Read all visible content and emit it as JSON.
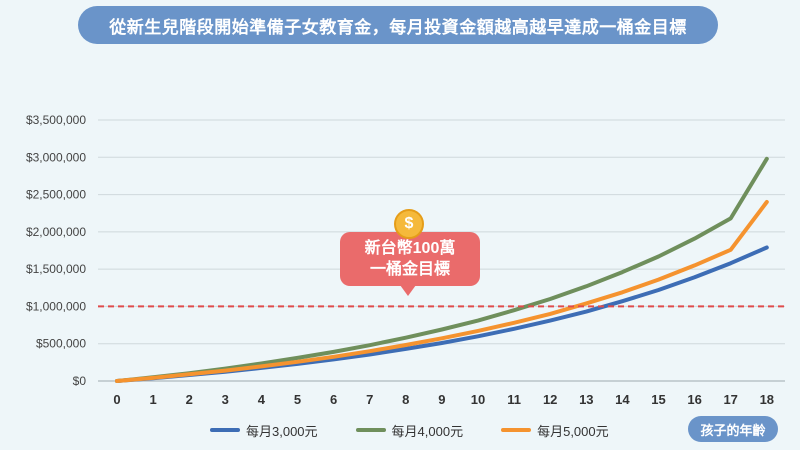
{
  "chart_data": {
    "type": "line",
    "title": "從新生兒階段開始準備子女教育金，每月投資金額越高越早達成一桶金目標",
    "xlabel": "孩子的年齡",
    "ylabel": "",
    "x": [
      0,
      1,
      2,
      3,
      4,
      5,
      6,
      7,
      8,
      9,
      10,
      11,
      12,
      13,
      14,
      15,
      16,
      17,
      18
    ],
    "y_ticks": [
      "$0",
      "$500,000",
      "$1,000,000",
      "$1,500,000",
      "$2,000,000",
      "$2,500,000",
      "$3,000,000",
      "$3,500,000"
    ],
    "ylim": [
      0,
      3500000
    ],
    "grid": true,
    "legend_position": "bottom",
    "series": [
      {
        "name": "每月3,000元",
        "color": "#3d6db5",
        "values": [
          0,
          38000,
          80000,
          125000,
          175000,
          229000,
          290000,
          355000,
          430000,
          510000,
          600000,
          700000,
          810000,
          930000,
          1070000,
          1220000,
          1390000,
          1580000,
          1790000
        ]
      },
      {
        "name": "每月4,000元",
        "color": "#6f8f5c",
        "values": [
          0,
          50000,
          105000,
          166000,
          235000,
          310000,
          390000,
          480000,
          580000,
          690000,
          810000,
          950000,
          1100000,
          1270000,
          1460000,
          1670000,
          1910000,
          2180000,
          2980000
        ]
      },
      {
        "name": "每月5,000元",
        "color": "#f5932f",
        "values": [
          0,
          42000,
          90000,
          140000,
          196000,
          258000,
          325000,
          400000,
          483000,
          573000,
          672000,
          780000,
          900000,
          1040000,
          1190000,
          1360000,
          1550000,
          1760000,
          2400000
        ]
      }
    ],
    "reference_line": {
      "value": 1000000,
      "color": "#e04b4b"
    },
    "annotation": {
      "line1": "新台幣100萬",
      "line2": "一桶金目標",
      "icon": "dollar-coin-icon",
      "icon_glyph": "$"
    }
  }
}
